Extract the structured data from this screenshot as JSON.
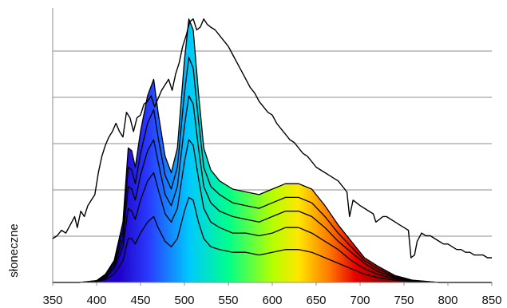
{
  "chart_data": {
    "type": "line",
    "title": "",
    "xlabel": "",
    "ylabel": "słoneczne",
    "xlim": [
      350,
      850
    ],
    "ylim": [
      0,
      1
    ],
    "grid": true,
    "x_ticks": [
      "350",
      "400",
      "450",
      "500",
      "550",
      "600",
      "650",
      "700",
      "750",
      "800",
      "850"
    ],
    "fill_gradient_colors": [
      "#1e00c8",
      "#2a3cff",
      "#00c8ff",
      "#00ff8c",
      "#b4ff00",
      "#ffe600",
      "#ff7800",
      "#e60000",
      "#8c0000"
    ],
    "series": [
      {
        "role": "solar-spectrum",
        "points": [
          [
            350,
            0.16
          ],
          [
            355,
            0.17
          ],
          [
            360,
            0.19
          ],
          [
            365,
            0.18
          ],
          [
            370,
            0.21
          ],
          [
            375,
            0.24
          ],
          [
            378,
            0.2
          ],
          [
            382,
            0.26
          ],
          [
            386,
            0.24
          ],
          [
            390,
            0.28
          ],
          [
            394,
            0.3
          ],
          [
            398,
            0.32
          ],
          [
            402,
            0.4
          ],
          [
            406,
            0.46
          ],
          [
            410,
            0.5
          ],
          [
            414,
            0.53
          ],
          [
            418,
            0.55
          ],
          [
            422,
            0.58
          ],
          [
            426,
            0.55
          ],
          [
            430,
            0.53
          ],
          [
            434,
            0.62
          ],
          [
            438,
            0.6
          ],
          [
            442,
            0.55
          ],
          [
            446,
            0.6
          ],
          [
            450,
            0.61
          ],
          [
            454,
            0.65
          ],
          [
            458,
            0.66
          ],
          [
            462,
            0.68
          ],
          [
            466,
            0.64
          ],
          [
            470,
            0.67
          ],
          [
            474,
            0.7
          ],
          [
            478,
            0.72
          ],
          [
            482,
            0.74
          ],
          [
            486,
            0.7
          ],
          [
            490,
            0.76
          ],
          [
            494,
            0.8
          ],
          [
            498,
            0.86
          ],
          [
            502,
            0.9
          ],
          [
            506,
            0.95
          ],
          [
            510,
            0.96
          ],
          [
            514,
            0.92
          ],
          [
            518,
            0.93
          ],
          [
            522,
            0.96
          ],
          [
            526,
            0.94
          ],
          [
            530,
            0.93
          ],
          [
            535,
            0.92
          ],
          [
            540,
            0.9
          ],
          [
            545,
            0.88
          ],
          [
            550,
            0.86
          ],
          [
            555,
            0.83
          ],
          [
            560,
            0.8
          ],
          [
            565,
            0.77
          ],
          [
            570,
            0.74
          ],
          [
            575,
            0.71
          ],
          [
            580,
            0.69
          ],
          [
            585,
            0.66
          ],
          [
            590,
            0.64
          ],
          [
            595,
            0.62
          ],
          [
            600,
            0.61
          ],
          [
            605,
            0.58
          ],
          [
            610,
            0.56
          ],
          [
            615,
            0.54
          ],
          [
            620,
            0.52
          ],
          [
            625,
            0.51
          ],
          [
            630,
            0.49
          ],
          [
            635,
            0.47
          ],
          [
            640,
            0.46
          ],
          [
            645,
            0.44
          ],
          [
            650,
            0.42
          ],
          [
            655,
            0.41
          ],
          [
            660,
            0.4
          ],
          [
            665,
            0.39
          ],
          [
            670,
            0.38
          ],
          [
            675,
            0.37
          ],
          [
            680,
            0.35
          ],
          [
            685,
            0.33
          ],
          [
            688,
            0.24
          ],
          [
            692,
            0.3
          ],
          [
            696,
            0.29
          ],
          [
            700,
            0.28
          ],
          [
            705,
            0.27
          ],
          [
            710,
            0.26
          ],
          [
            715,
            0.25
          ],
          [
            718,
            0.22
          ],
          [
            722,
            0.23
          ],
          [
            726,
            0.24
          ],
          [
            730,
            0.24
          ],
          [
            735,
            0.23
          ],
          [
            740,
            0.22
          ],
          [
            745,
            0.21
          ],
          [
            750,
            0.2
          ],
          [
            755,
            0.19
          ],
          [
            758,
            0.09
          ],
          [
            762,
            0.1
          ],
          [
            765,
            0.15
          ],
          [
            770,
            0.18
          ],
          [
            775,
            0.17
          ],
          [
            780,
            0.17
          ],
          [
            785,
            0.16
          ],
          [
            790,
            0.15
          ],
          [
            795,
            0.14
          ],
          [
            800,
            0.14
          ],
          [
            805,
            0.13
          ],
          [
            810,
            0.12
          ],
          [
            815,
            0.12
          ],
          [
            820,
            0.11
          ],
          [
            825,
            0.11
          ],
          [
            830,
            0.1
          ],
          [
            835,
            0.1
          ],
          [
            840,
            0.1
          ],
          [
            845,
            0.09
          ],
          [
            850,
            0.09
          ]
        ]
      },
      {
        "role": "absorption-1",
        "points": [
          [
            350,
            0
          ],
          [
            380,
            0
          ],
          [
            400,
            0.003
          ],
          [
            410,
            0.01
          ],
          [
            420,
            0.03
          ],
          [
            430,
            0.08
          ],
          [
            436,
            0.16
          ],
          [
            440,
            0.16
          ],
          [
            444,
            0.14
          ],
          [
            450,
            0.18
          ],
          [
            458,
            0.22
          ],
          [
            465,
            0.24
          ],
          [
            470,
            0.2
          ],
          [
            478,
            0.15
          ],
          [
            485,
            0.13
          ],
          [
            492,
            0.16
          ],
          [
            500,
            0.26
          ],
          [
            505,
            0.31
          ],
          [
            510,
            0.3
          ],
          [
            516,
            0.22
          ],
          [
            522,
            0.16
          ],
          [
            530,
            0.13
          ],
          [
            540,
            0.12
          ],
          [
            555,
            0.11
          ],
          [
            570,
            0.11
          ],
          [
            585,
            0.1
          ],
          [
            600,
            0.11
          ],
          [
            615,
            0.12
          ],
          [
            630,
            0.12
          ],
          [
            645,
            0.11
          ],
          [
            660,
            0.09
          ],
          [
            675,
            0.07
          ],
          [
            690,
            0.05
          ],
          [
            705,
            0.03
          ],
          [
            720,
            0.018
          ],
          [
            740,
            0.008
          ],
          [
            760,
            0.003
          ],
          [
            790,
            0
          ],
          [
            850,
            0
          ]
        ]
      },
      {
        "role": "absorption-2",
        "points": [
          [
            350,
            0
          ],
          [
            380,
            0
          ],
          [
            400,
            0.004
          ],
          [
            410,
            0.015
          ],
          [
            420,
            0.05
          ],
          [
            430,
            0.13
          ],
          [
            436,
            0.27
          ],
          [
            440,
            0.26
          ],
          [
            444,
            0.23
          ],
          [
            450,
            0.3
          ],
          [
            458,
            0.37
          ],
          [
            465,
            0.4
          ],
          [
            470,
            0.34
          ],
          [
            478,
            0.25
          ],
          [
            485,
            0.22
          ],
          [
            492,
            0.27
          ],
          [
            500,
            0.44
          ],
          [
            505,
            0.52
          ],
          [
            510,
            0.5
          ],
          [
            516,
            0.38
          ],
          [
            522,
            0.27
          ],
          [
            530,
            0.22
          ],
          [
            540,
            0.2
          ],
          [
            555,
            0.18
          ],
          [
            570,
            0.18
          ],
          [
            585,
            0.17
          ],
          [
            600,
            0.18
          ],
          [
            615,
            0.2
          ],
          [
            630,
            0.2
          ],
          [
            645,
            0.18
          ],
          [
            660,
            0.15
          ],
          [
            675,
            0.12
          ],
          [
            690,
            0.08
          ],
          [
            705,
            0.05
          ],
          [
            720,
            0.03
          ],
          [
            740,
            0.013
          ],
          [
            760,
            0.005
          ],
          [
            790,
            0
          ],
          [
            850,
            0
          ]
        ]
      },
      {
        "role": "absorption-3",
        "points": [
          [
            350,
            0
          ],
          [
            380,
            0
          ],
          [
            400,
            0.005
          ],
          [
            410,
            0.02
          ],
          [
            420,
            0.06
          ],
          [
            430,
            0.16
          ],
          [
            436,
            0.35
          ],
          [
            440,
            0.34
          ],
          [
            444,
            0.3
          ],
          [
            450,
            0.39
          ],
          [
            458,
            0.48
          ],
          [
            465,
            0.52
          ],
          [
            470,
            0.44
          ],
          [
            478,
            0.32
          ],
          [
            485,
            0.28
          ],
          [
            492,
            0.35
          ],
          [
            500,
            0.57
          ],
          [
            505,
            0.68
          ],
          [
            510,
            0.65
          ],
          [
            516,
            0.49
          ],
          [
            522,
            0.35
          ],
          [
            530,
            0.29
          ],
          [
            540,
            0.26
          ],
          [
            555,
            0.24
          ],
          [
            570,
            0.23
          ],
          [
            585,
            0.22
          ],
          [
            600,
            0.24
          ],
          [
            615,
            0.26
          ],
          [
            630,
            0.26
          ],
          [
            645,
            0.24
          ],
          [
            660,
            0.2
          ],
          [
            675,
            0.15
          ],
          [
            690,
            0.11
          ],
          [
            705,
            0.07
          ],
          [
            720,
            0.04
          ],
          [
            740,
            0.017
          ],
          [
            760,
            0.006
          ],
          [
            790,
            0
          ],
          [
            850,
            0
          ]
        ]
      },
      {
        "role": "absorption-4",
        "points": [
          [
            350,
            0
          ],
          [
            380,
            0
          ],
          [
            400,
            0.006
          ],
          [
            410,
            0.025
          ],
          [
            420,
            0.07
          ],
          [
            430,
            0.19
          ],
          [
            436,
            0.42
          ],
          [
            440,
            0.41
          ],
          [
            444,
            0.36
          ],
          [
            450,
            0.47
          ],
          [
            458,
            0.58
          ],
          [
            465,
            0.63
          ],
          [
            470,
            0.53
          ],
          [
            478,
            0.39
          ],
          [
            485,
            0.34
          ],
          [
            492,
            0.42
          ],
          [
            500,
            0.69
          ],
          [
            505,
            0.82
          ],
          [
            510,
            0.78
          ],
          [
            516,
            0.59
          ],
          [
            522,
            0.42
          ],
          [
            530,
            0.35
          ],
          [
            540,
            0.32
          ],
          [
            555,
            0.29
          ],
          [
            570,
            0.28
          ],
          [
            585,
            0.27
          ],
          [
            600,
            0.29
          ],
          [
            615,
            0.31
          ],
          [
            630,
            0.31
          ],
          [
            645,
            0.29
          ],
          [
            660,
            0.24
          ],
          [
            675,
            0.18
          ],
          [
            690,
            0.13
          ],
          [
            705,
            0.08
          ],
          [
            720,
            0.05
          ],
          [
            740,
            0.02
          ],
          [
            760,
            0.007
          ],
          [
            790,
            0
          ],
          [
            850,
            0
          ]
        ]
      },
      {
        "role": "absorption-5",
        "points": [
          [
            350,
            0
          ],
          [
            380,
            0
          ],
          [
            400,
            0.007
          ],
          [
            410,
            0.03
          ],
          [
            420,
            0.08
          ],
          [
            430,
            0.22
          ],
          [
            436,
            0.49
          ],
          [
            440,
            0.48
          ],
          [
            444,
            0.42
          ],
          [
            450,
            0.55
          ],
          [
            458,
            0.68
          ],
          [
            465,
            0.74
          ],
          [
            470,
            0.62
          ],
          [
            478,
            0.46
          ],
          [
            485,
            0.4
          ],
          [
            492,
            0.49
          ],
          [
            500,
            0.81
          ],
          [
            505,
            0.96
          ],
          [
            510,
            0.92
          ],
          [
            516,
            0.69
          ],
          [
            522,
            0.49
          ],
          [
            530,
            0.41
          ],
          [
            540,
            0.37
          ],
          [
            555,
            0.34
          ],
          [
            570,
            0.33
          ],
          [
            585,
            0.32
          ],
          [
            600,
            0.34
          ],
          [
            615,
            0.36
          ],
          [
            630,
            0.36
          ],
          [
            645,
            0.34
          ],
          [
            660,
            0.28
          ],
          [
            675,
            0.21
          ],
          [
            690,
            0.15
          ],
          [
            705,
            0.09
          ],
          [
            720,
            0.06
          ],
          [
            740,
            0.025
          ],
          [
            760,
            0.008
          ],
          [
            790,
            0
          ],
          [
            850,
            0
          ]
        ]
      }
    ]
  }
}
